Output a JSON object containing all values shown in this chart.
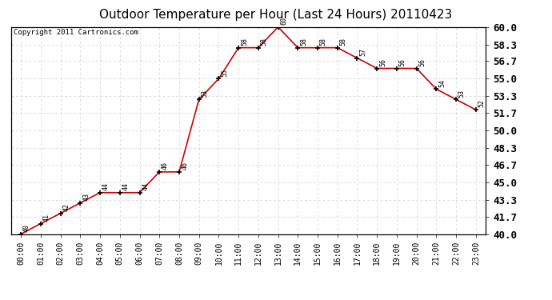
{
  "title": "Outdoor Temperature per Hour (Last 24 Hours) 20110423",
  "copyright": "Copyright 2011 Cartronics.com",
  "hours": [
    "00:00",
    "01:00",
    "02:00",
    "03:00",
    "04:00",
    "05:00",
    "06:00",
    "07:00",
    "08:00",
    "09:00",
    "10:00",
    "11:00",
    "12:00",
    "13:00",
    "14:00",
    "15:00",
    "16:00",
    "17:00",
    "18:00",
    "19:00",
    "20:00",
    "21:00",
    "22:00",
    "23:00"
  ],
  "temperatures": [
    40,
    41,
    42,
    43,
    44,
    44,
    44,
    46,
    46,
    53,
    55,
    58,
    58,
    60,
    58,
    58,
    58,
    57,
    56,
    56,
    56,
    54,
    53,
    52
  ],
  "line_color": "#cc0000",
  "marker_color": "#000000",
  "background_color": "#ffffff",
  "grid_color": "#cccccc",
  "ylim_min": 40.0,
  "ylim_max": 60.0,
  "ytick_values": [
    40.0,
    41.7,
    43.3,
    45.0,
    46.7,
    48.3,
    50.0,
    51.7,
    53.3,
    55.0,
    56.7,
    58.3,
    60.0
  ],
  "title_fontsize": 11,
  "label_fontsize": 6,
  "tick_fontsize": 7,
  "copyright_fontsize": 6.5,
  "right_ytick_fontsize": 9
}
